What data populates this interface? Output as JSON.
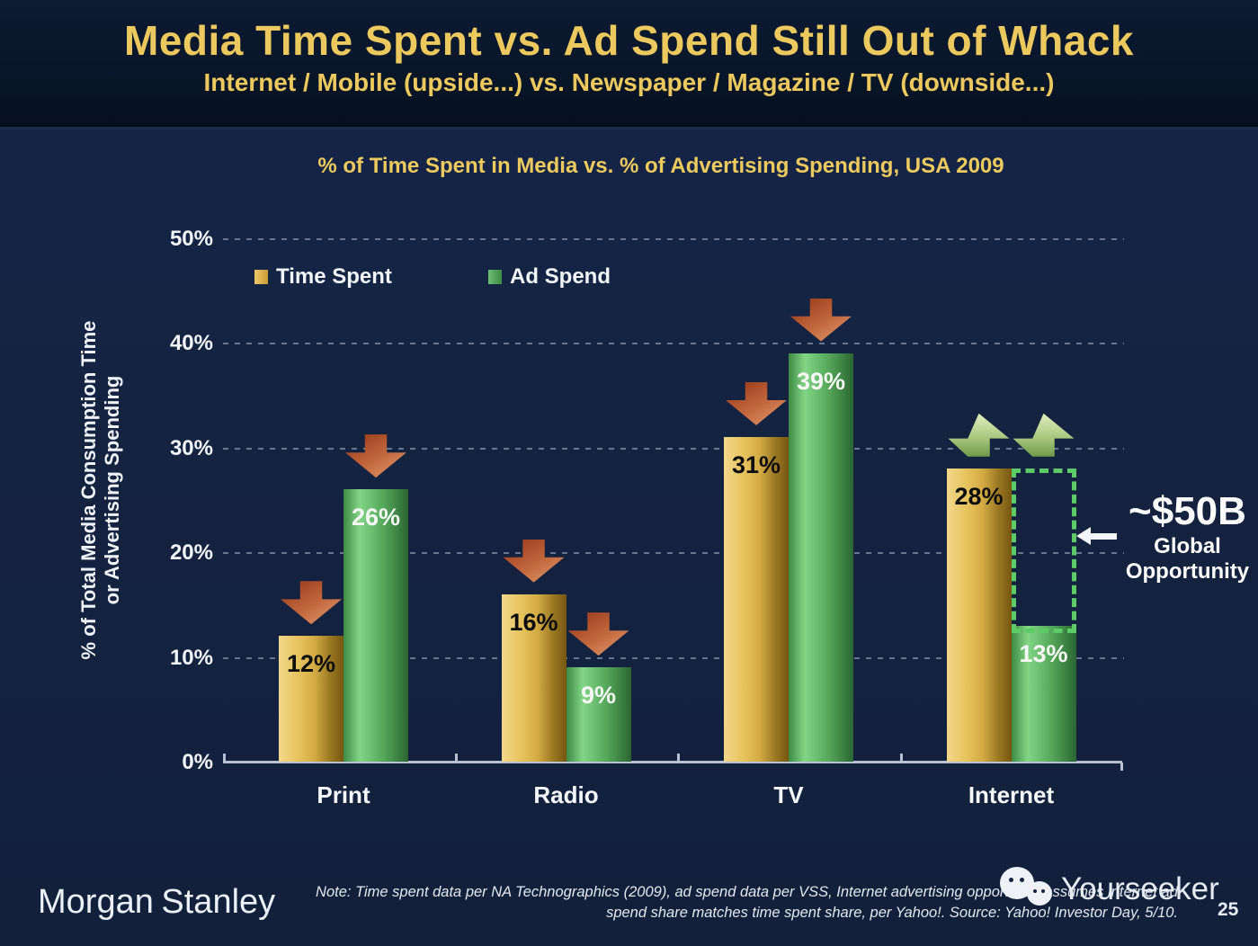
{
  "header": {
    "title": "Media Time Spent vs. Ad Spend Still Out of Whack",
    "subtitle": "Internet / Mobile (upside...) vs. Newspaper / Magazine / TV (downside...)"
  },
  "chart_data": {
    "type": "bar",
    "title": "% of Time Spent in Media vs. % of Advertising Spending, USA 2009",
    "ylabel_line1": "% of Total Media Consumption Time",
    "ylabel_line2": "or Advertising Spending",
    "categories": [
      "Print",
      "Radio",
      "TV",
      "Internet"
    ],
    "series": [
      {
        "name": "Time Spent",
        "values": [
          12,
          16,
          31,
          28
        ],
        "labels": [
          "12%",
          "16%",
          "31%",
          "28%"
        ],
        "color": "#dfb552"
      },
      {
        "name": "Ad Spend",
        "values": [
          26,
          9,
          39,
          13
        ],
        "labels": [
          "26%",
          "9%",
          "39%",
          "13%"
        ],
        "color": "#58ab5e"
      }
    ],
    "ylim": [
      0,
      50
    ],
    "yticks": [
      {
        "value": 0,
        "label": "0%"
      },
      {
        "value": 10,
        "label": "10%"
      },
      {
        "value": 20,
        "label": "20%"
      },
      {
        "value": 30,
        "label": "30%"
      },
      {
        "value": 40,
        "label": "40%"
      },
      {
        "value": 50,
        "label": "50%"
      }
    ],
    "grid": "horizontal-dashed",
    "legend_position": "top-left-inside",
    "trend_arrows": [
      {
        "category": "Print",
        "series": 0,
        "dir": "down"
      },
      {
        "category": "Print",
        "series": 1,
        "dir": "down"
      },
      {
        "category": "Radio",
        "series": 0,
        "dir": "down"
      },
      {
        "category": "Radio",
        "series": 1,
        "dir": "down"
      },
      {
        "category": "TV",
        "series": 0,
        "dir": "down"
      },
      {
        "category": "TV",
        "series": 1,
        "dir": "down"
      },
      {
        "category": "Internet",
        "series": 0,
        "dir": "up"
      },
      {
        "category": "Internet",
        "series": 1,
        "dir": "up",
        "anchor_series": 0
      }
    ],
    "opportunity_box": {
      "category": "Internet",
      "series": 1,
      "from_value": 13,
      "to_value": 28
    },
    "annotation": {
      "value": "~$50B",
      "line1": "Global",
      "line2": "Opportunity"
    }
  },
  "footer": {
    "brand": "Morgan Stanley",
    "note_line1": "Note: Time spent data per NA Technographics (2009), ad spend data per VSS, Internet advertising opportunity assumes internet ad",
    "note_line2": "spend share matches time spent share, per Yahoo!. Source: Yahoo! Investor Day, 5/10.",
    "watermark": "Yourseeker",
    "page_number": "25"
  },
  "colors": {
    "title_gold": "#ecc95e",
    "bar_gold": "#dfb552",
    "bar_green": "#58ab5e",
    "down_arrow": "#c2683f",
    "up_arrow": "#a9c87e",
    "opportunity_border": "#5ecb69"
  }
}
